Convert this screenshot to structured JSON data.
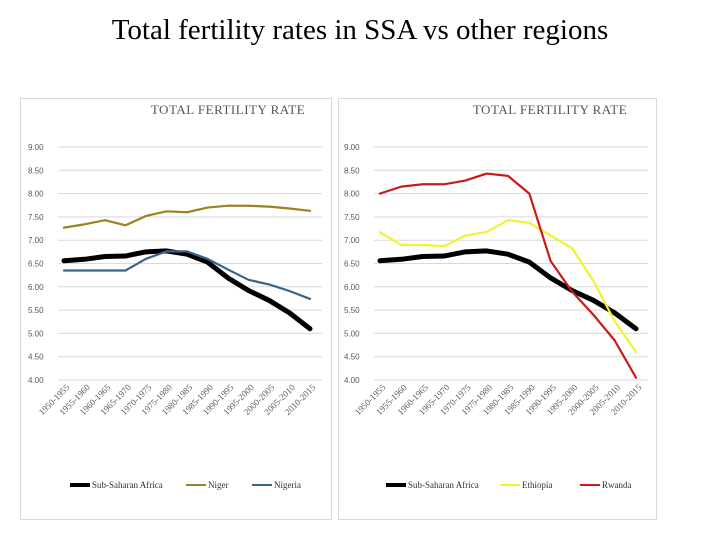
{
  "title": "Total fertility rates in SSA vs other regions",
  "chart_data": [
    {
      "type": "line",
      "title": "TOTAL FERTILITY RATE",
      "ylim": [
        4,
        9
      ],
      "yticks": [
        "4.00",
        "4.50",
        "5.00",
        "5.50",
        "6.00",
        "6.50",
        "7.00",
        "7.50",
        "8.00",
        "8.50",
        "9.00"
      ],
      "grid": true,
      "legend": "bottom",
      "categories": [
        "1950-1955",
        "1955-1960",
        "1960-1965",
        "1965-1970",
        "1970-1975",
        "1975-1980",
        "1980-1985",
        "1985-1990",
        "1990-1995",
        "1995-2000",
        "2000-2005",
        "2005-2010",
        "2010-2015"
      ],
      "series": [
        {
          "name": "Sub-Saharan Africa",
          "color": "#000000",
          "values": [
            6.56,
            6.59,
            6.65,
            6.66,
            6.75,
            6.77,
            6.7,
            6.53,
            6.19,
            5.92,
            5.71,
            5.44,
            5.1
          ]
        },
        {
          "name": "Niger",
          "color": "#9c8320",
          "values": [
            7.27,
            7.34,
            7.43,
            7.32,
            7.52,
            7.62,
            7.6,
            7.7,
            7.74,
            7.74,
            7.72,
            7.68,
            7.63
          ]
        },
        {
          "name": "Nigeria",
          "color": "#3b6486",
          "values": [
            6.35,
            6.35,
            6.35,
            6.35,
            6.6,
            6.76,
            6.76,
            6.6,
            6.37,
            6.15,
            6.05,
            5.91,
            5.74
          ]
        }
      ]
    },
    {
      "type": "line",
      "title": "TOTAL FERTILITY RATE",
      "ylim": [
        4,
        9
      ],
      "yticks": [
        "4.00",
        "4.50",
        "5.00",
        "5.50",
        "6.00",
        "6.50",
        "7.00",
        "7.50",
        "8.00",
        "8.50",
        "9.00"
      ],
      "grid": true,
      "legend": "bottom",
      "categories": [
        "1950-1955",
        "1955-1960",
        "1960-1965",
        "1965-1970",
        "1970-1975",
        "1975-1980",
        "1980-1985",
        "1985-1990",
        "1990-1995",
        "1995-2000",
        "2000-2005",
        "2005-2010",
        "2010-2015"
      ],
      "series": [
        {
          "name": "Sub-Saharan Africa",
          "color": "#000000",
          "values": [
            6.56,
            6.59,
            6.65,
            6.66,
            6.75,
            6.77,
            6.7,
            6.53,
            6.19,
            5.92,
            5.71,
            5.44,
            5.1
          ]
        },
        {
          "name": "Ethiopia",
          "color": "#f2f230",
          "values": [
            7.17,
            6.9,
            6.9,
            6.87,
            7.1,
            7.18,
            7.43,
            7.37,
            7.1,
            6.83,
            6.13,
            5.26,
            4.6
          ]
        },
        {
          "name": "Rwanda",
          "color": "#cc1a1a",
          "values": [
            8.0,
            8.15,
            8.2,
            8.2,
            8.28,
            8.43,
            8.38,
            8.0,
            6.55,
            5.9,
            5.4,
            4.85,
            4.05
          ]
        }
      ]
    }
  ]
}
